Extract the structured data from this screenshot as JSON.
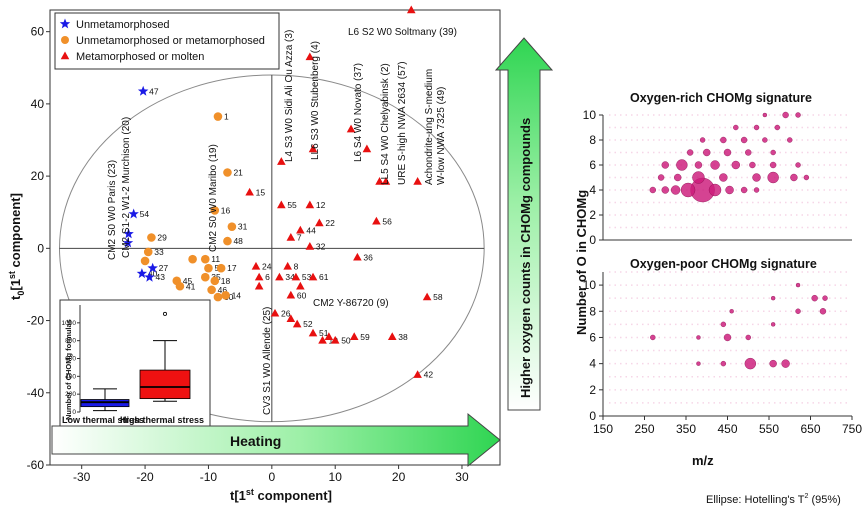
{
  "footnote": {
    "prefix": "Ellipse: Hotelling's T",
    "sup": "2",
    "suffix": " (95%)"
  },
  "chart_data": [
    {
      "type": "scatter",
      "xlabel": "t[1st component]",
      "ylabel": "t0[1st component]",
      "xlabel_parts": {
        "main": "t[1",
        "sup": "st",
        "rest": " component]"
      },
      "ylabel_parts": {
        "main": "t",
        "sub": "0",
        "mid": "[1",
        "sup": "st",
        "rest": " component]"
      },
      "xlim": [
        -35,
        36
      ],
      "ylim": [
        -60,
        66
      ],
      "xticks": [
        -30,
        -20,
        -10,
        0,
        10,
        20,
        30
      ],
      "yticks": [
        -60,
        -40,
        -20,
        0,
        20,
        40,
        60
      ],
      "ellipse": {
        "cx": 0,
        "cy": 0,
        "rx": 33.5,
        "ry": 48
      },
      "legend": {
        "position": "top-left",
        "entries": [
          {
            "label": "Unmetamorphosed",
            "color": "#1a1ae6",
            "marker": "star"
          },
          {
            "label": "Unmetamorphosed or metamorphosed",
            "color": "#f0902a",
            "marker": "circle"
          },
          {
            "label": "Metamorphosed or molten",
            "color": "#e81010",
            "marker": "triangle"
          }
        ]
      },
      "series": [
        {
          "name": "Unmetamorphosed",
          "marker": "star",
          "color": "#1a1ae6",
          "points": [
            {
              "id": "47",
              "x": -20.3,
              "y": 43.5
            },
            {
              "id": "54",
              "x": -21.8,
              "y": 9.5
            },
            {
              "id": "",
              "x": -22.6,
              "y": 4.0
            },
            {
              "id": "",
              "x": -22.7,
              "y": 1.5
            },
            {
              "id": "40",
              "x": -20.5,
              "y": -7.0
            },
            {
              "id": "27",
              "x": -18.8,
              "y": -5.5
            },
            {
              "id": "43",
              "x": -19.3,
              "y": -8.0
            }
          ]
        },
        {
          "name": "Unmetamorphosed or metamorphosed",
          "marker": "circle",
          "color": "#f0902a",
          "points": [
            {
              "id": "1",
              "x": -8.5,
              "y": 36.5
            },
            {
              "id": "21",
              "x": -7.0,
              "y": 21.0
            },
            {
              "id": "16",
              "x": -9.0,
              "y": 10.5
            },
            {
              "id": "31",
              "x": -6.3,
              "y": 6.0
            },
            {
              "id": "48",
              "x": -7.0,
              "y": 2.0
            },
            {
              "id": "29",
              "x": -19.0,
              "y": 3.0
            },
            {
              "id": "33",
              "x": -19.5,
              "y": -1.0
            },
            {
              "id": "",
              "x": -20.0,
              "y": -3.5
            },
            {
              "id": "11",
              "x": -10.5,
              "y": -3.0
            },
            {
              "id": "",
              "x": -12.5,
              "y": -3.0
            },
            {
              "id": "5",
              "x": -10.0,
              "y": -5.5
            },
            {
              "id": "17",
              "x": -8.0,
              "y": -5.5
            },
            {
              "id": "35",
              "x": -10.5,
              "y": -8.0
            },
            {
              "id": "18",
              "x": -9.0,
              "y": -9.0
            },
            {
              "id": "45",
              "x": -15.0,
              "y": -9.0
            },
            {
              "id": "41",
              "x": -14.5,
              "y": -10.5
            },
            {
              "id": "46",
              "x": -9.5,
              "y": -11.5
            },
            {
              "id": "30",
              "x": -8.5,
              "y": -13.5
            },
            {
              "id": "14",
              "x": -7.3,
              "y": -13.0
            }
          ]
        },
        {
          "name": "Metamorphosed or molten",
          "marker": "triangle",
          "color": "#e81010",
          "points": [
            {
              "id": "",
              "x": 22.0,
              "y": 66.0
            },
            {
              "id": "",
              "x": 6.0,
              "y": 53.0
            },
            {
              "id": "",
              "x": 1.5,
              "y": 24.0
            },
            {
              "id": "",
              "x": 6.5,
              "y": 27.5
            },
            {
              "id": "",
              "x": 12.5,
              "y": 33.0
            },
            {
              "id": "",
              "x": 15.0,
              "y": 27.5
            },
            {
              "id": "",
              "x": 17.0,
              "y": 18.5
            },
            {
              "id": "",
              "x": 18.0,
              "y": 18.5
            },
            {
              "id": "",
              "x": 23.0,
              "y": 18.5
            },
            {
              "id": "15",
              "x": -3.5,
              "y": 15.5
            },
            {
              "id": "55",
              "x": 1.5,
              "y": 12.0
            },
            {
              "id": "12",
              "x": 6.0,
              "y": 12.0
            },
            {
              "id": "56",
              "x": 16.5,
              "y": 7.5
            },
            {
              "id": "22",
              "x": 7.5,
              "y": 7.0
            },
            {
              "id": "44",
              "x": 4.5,
              "y": 5.0
            },
            {
              "id": "7",
              "x": 3.0,
              "y": 3.0
            },
            {
              "id": "32",
              "x": 6.0,
              "y": 0.5
            },
            {
              "id": "36",
              "x": 13.5,
              "y": -2.5
            },
            {
              "id": "24",
              "x": -2.5,
              "y": -5.0
            },
            {
              "id": "6",
              "x": -2.0,
              "y": -8.0
            },
            {
              "id": "",
              "x": -2.0,
              "y": -10.5
            },
            {
              "id": "8",
              "x": 2.5,
              "y": -5.0
            },
            {
              "id": "34",
              "x": 1.2,
              "y": -8.0
            },
            {
              "id": "53",
              "x": 3.8,
              "y": -8.0
            },
            {
              "id": "61",
              "x": 6.5,
              "y": -8.0
            },
            {
              "id": "",
              "x": 4.5,
              "y": -10.5
            },
            {
              "id": "60",
              "x": 3.0,
              "y": -13.0
            },
            {
              "id": "26",
              "x": 0.5,
              "y": -18.0
            },
            {
              "id": "",
              "x": 3.0,
              "y": -19.5
            },
            {
              "id": "52",
              "x": 4.0,
              "y": -21.0
            },
            {
              "id": "51",
              "x": 6.5,
              "y": -23.5
            },
            {
              "id": "10",
              "x": 8.0,
              "y": -25.5
            },
            {
              "id": "",
              "x": 9.0,
              "y": -24.5
            },
            {
              "id": "50",
              "x": 10.0,
              "y": -25.5
            },
            {
              "id": "59",
              "x": 13.0,
              "y": -24.5
            },
            {
              "id": "38",
              "x": 19.0,
              "y": -24.5
            },
            {
              "id": "58",
              "x": 24.5,
              "y": -13.5
            },
            {
              "id": "42",
              "x": 23.0,
              "y": -35.0
            }
          ]
        }
      ],
      "annotations": [
        {
          "text": "L6 S2 W0 Soltmany (39)",
          "orientation": "horizontal"
        },
        {
          "text": "CM2 Y-86720 (9)",
          "orientation": "horizontal"
        },
        {
          "text": "CM2 S1-2 W1-2 Murchison (20)",
          "orientation": "vertical"
        },
        {
          "text": "CM2 S0 W0 Paris (23)",
          "orientation": "vertical"
        },
        {
          "text": "CM2 S0 W0 Maribo (19)",
          "orientation": "vertical"
        },
        {
          "text": "L4 S3 W0 Sidi Ali Ou Azza (3)",
          "orientation": "vertical"
        },
        {
          "text": "LL6 S3 W0 Stubenberg (4)",
          "orientation": "vertical"
        },
        {
          "text": "L6 S4 W0 Novato (37)",
          "orientation": "vertical"
        },
        {
          "text": "LL5 S4 W0 Chelyabinsk (2)",
          "orientation": "vertical"
        },
        {
          "text": "URE S-high NWA 2634 (57)",
          "orientation": "vertical"
        },
        {
          "text": "Achondrite-ung S-medium",
          "orientation": "vertical"
        },
        {
          "text": "W-low NWA 7325 (49)",
          "orientation": "vertical"
        },
        {
          "text": "CV3 S1 W0 Allende (25)",
          "orientation": "vertical"
        }
      ]
    },
    {
      "type": "box",
      "ylabel": "Number of CHOMg formulas",
      "ylim": [
        0,
        1200
      ],
      "yticks": [
        0,
        200,
        400,
        600,
        800,
        1000
      ],
      "boxes": [
        {
          "name": "Low thermal stress",
          "color": "#1a1ae6",
          "label_color": "#1a1ae6",
          "whisker_low": 15,
          "q1": 60,
          "median": 110,
          "q3": 140,
          "whisker_high": 260
        },
        {
          "name": "High thermal stress",
          "color": "#ee1111",
          "label_color": "#ee1111",
          "whisker_low": 120,
          "q1": 150,
          "median": 280,
          "q3": 470,
          "whisker_high": 800,
          "outlier": 1100
        }
      ]
    },
    {
      "type": "bubble",
      "title": "Oxygen-rich CHOMg signature",
      "ylim": [
        0,
        10
      ],
      "yticks": [
        0,
        2,
        4,
        6,
        8,
        10
      ],
      "xlim": [
        150,
        750
      ],
      "color": "#cc1a7a",
      "bubbles": [
        {
          "x": 390,
          "y": 4,
          "size": 22
        },
        {
          "x": 355,
          "y": 4,
          "size": 12
        },
        {
          "x": 420,
          "y": 4,
          "size": 10
        },
        {
          "x": 325,
          "y": 4,
          "size": 7
        },
        {
          "x": 455,
          "y": 4,
          "size": 6
        },
        {
          "x": 300,
          "y": 4,
          "size": 5
        },
        {
          "x": 490,
          "y": 4,
          "size": 4
        },
        {
          "x": 270,
          "y": 4,
          "size": 4
        },
        {
          "x": 520,
          "y": 4,
          "size": 3
        },
        {
          "x": 380,
          "y": 5,
          "size": 10
        },
        {
          "x": 560,
          "y": 5,
          "size": 9
        },
        {
          "x": 520,
          "y": 5,
          "size": 6
        },
        {
          "x": 440,
          "y": 5,
          "size": 6
        },
        {
          "x": 330,
          "y": 5,
          "size": 5
        },
        {
          "x": 610,
          "y": 5,
          "size": 5
        },
        {
          "x": 290,
          "y": 5,
          "size": 4
        },
        {
          "x": 640,
          "y": 5,
          "size": 3
        },
        {
          "x": 340,
          "y": 6,
          "size": 9
        },
        {
          "x": 420,
          "y": 6,
          "size": 7
        },
        {
          "x": 470,
          "y": 6,
          "size": 6
        },
        {
          "x": 300,
          "y": 6,
          "size": 5
        },
        {
          "x": 380,
          "y": 6,
          "size": 5
        },
        {
          "x": 510,
          "y": 6,
          "size": 4
        },
        {
          "x": 560,
          "y": 6,
          "size": 4
        },
        {
          "x": 620,
          "y": 6,
          "size": 3
        },
        {
          "x": 400,
          "y": 7,
          "size": 5
        },
        {
          "x": 450,
          "y": 7,
          "size": 5
        },
        {
          "x": 360,
          "y": 7,
          "size": 4
        },
        {
          "x": 500,
          "y": 7,
          "size": 4
        },
        {
          "x": 560,
          "y": 7,
          "size": 3
        },
        {
          "x": 440,
          "y": 8,
          "size": 4
        },
        {
          "x": 490,
          "y": 8,
          "size": 4
        },
        {
          "x": 390,
          "y": 8,
          "size": 3
        },
        {
          "x": 540,
          "y": 8,
          "size": 3
        },
        {
          "x": 600,
          "y": 8,
          "size": 3
        },
        {
          "x": 470,
          "y": 9,
          "size": 3
        },
        {
          "x": 520,
          "y": 9,
          "size": 3
        },
        {
          "x": 570,
          "y": 9,
          "size": 3
        },
        {
          "x": 590,
          "y": 10,
          "size": 4
        },
        {
          "x": 620,
          "y": 10,
          "size": 3
        },
        {
          "x": 540,
          "y": 10,
          "size": 2
        }
      ]
    },
    {
      "type": "bubble",
      "title": "Oxygen-poor CHOMg signature",
      "ylabel": "Number of O in CHOMg",
      "xlabel": "m/z",
      "ylim": [
        0,
        11
      ],
      "yticks": [
        0,
        2,
        4,
        6,
        8,
        10
      ],
      "xlim": [
        150,
        750
      ],
      "xticks": [
        150,
        250,
        350,
        450,
        550,
        650,
        750
      ],
      "color": "#cc1a7a",
      "bubbles": [
        {
          "x": 505,
          "y": 4,
          "size": 9
        },
        {
          "x": 590,
          "y": 4,
          "size": 6
        },
        {
          "x": 560,
          "y": 4,
          "size": 5
        },
        {
          "x": 440,
          "y": 4,
          "size": 3
        },
        {
          "x": 380,
          "y": 4,
          "size": 2
        },
        {
          "x": 450,
          "y": 6,
          "size": 5
        },
        {
          "x": 270,
          "y": 6,
          "size": 3
        },
        {
          "x": 500,
          "y": 6,
          "size": 3
        },
        {
          "x": 380,
          "y": 6,
          "size": 2
        },
        {
          "x": 440,
          "y": 7,
          "size": 3
        },
        {
          "x": 560,
          "y": 7,
          "size": 2
        },
        {
          "x": 680,
          "y": 8,
          "size": 4
        },
        {
          "x": 620,
          "y": 8,
          "size": 3
        },
        {
          "x": 460,
          "y": 8,
          "size": 2
        },
        {
          "x": 660,
          "y": 9,
          "size": 4
        },
        {
          "x": 685,
          "y": 9,
          "size": 3
        },
        {
          "x": 560,
          "y": 9,
          "size": 2
        },
        {
          "x": 620,
          "y": 10,
          "size": 2
        }
      ]
    }
  ],
  "arrows": {
    "heating_label": "Heating",
    "oxygen_label": "Higher oxygen counts in CHOMg compounds",
    "color": "#2fd552"
  }
}
